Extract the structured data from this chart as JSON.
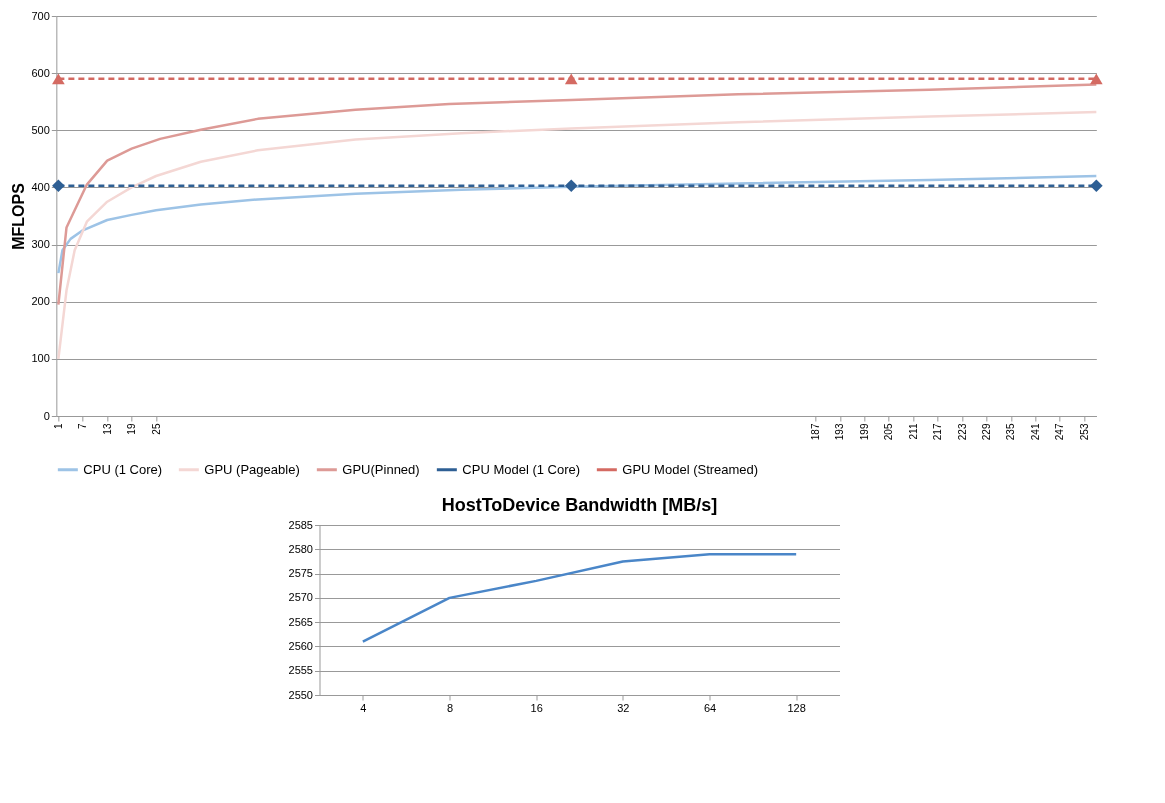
{
  "chart_data": [
    {
      "type": "line",
      "ylabel": "MFLOPS",
      "ylim": [
        0,
        700
      ],
      "yticks": [
        0,
        100,
        200,
        300,
        400,
        500,
        600,
        700
      ],
      "xlim": [
        0.5,
        256
      ],
      "xticks": [
        1,
        7,
        13,
        19,
        25,
        187,
        193,
        199,
        205,
        211,
        217,
        223,
        229,
        235,
        241,
        247,
        253
      ],
      "grid": "y",
      "legend": "bottom",
      "series": [
        {
          "name": "CPU (1 Core)",
          "color": "#9dc3e6",
          "x": [
            1,
            2,
            4,
            7,
            13,
            19,
            25,
            36,
            50,
            74,
            100,
            127,
            168,
            215,
            256
          ],
          "values": [
            250,
            290,
            310,
            325,
            343,
            352,
            360,
            370,
            379,
            389,
            396,
            401,
            407,
            413,
            420
          ]
        },
        {
          "name": "GPU (Pageable)",
          "color": "#f4d7d4",
          "x": [
            1,
            3,
            5,
            8,
            13,
            19,
            25,
            36,
            50,
            74,
            100,
            127,
            168,
            215,
            256
          ],
          "values": [
            100,
            220,
            290,
            340,
            375,
            400,
            420,
            445,
            465,
            484,
            495,
            503,
            514,
            524,
            532
          ]
        },
        {
          "name": "GPU(Pinned)",
          "color": "#dd9a96",
          "x": [
            1,
            3,
            5,
            8,
            13,
            19,
            26,
            36,
            50,
            74,
            97,
            127,
            168,
            215,
            256
          ],
          "values": [
            195,
            330,
            360,
            405,
            447,
            468,
            485,
            501,
            520,
            536,
            546,
            553,
            563,
            571,
            580
          ]
        },
        {
          "name": "CPU Model (1 Core)",
          "color": "#2e5f94",
          "type": "line",
          "line_style": "dashed",
          "marker": "diamond",
          "x": [
            1,
            127,
            256
          ],
          "values": [
            403,
            403,
            403
          ]
        },
        {
          "name": "GPU Model (Streamed)",
          "color": "#d46a62",
          "type": "line",
          "line_style": "dashed",
          "marker": "triangle",
          "x": [
            1,
            127,
            256
          ],
          "values": [
            590,
            590,
            590
          ]
        }
      ]
    },
    {
      "type": "line",
      "title": "HostToDevice Bandwidth [MB/s]",
      "categories": [
        "4",
        "8",
        "16",
        "32",
        "64",
        "128"
      ],
      "ylim": [
        2550,
        2585
      ],
      "yticks": [
        2550,
        2555,
        2560,
        2565,
        2570,
        2575,
        2580,
        2585
      ],
      "grid": "y",
      "series": [
        {
          "color": "#4a86c8",
          "values": [
            2561,
            2570,
            2573.5,
            2577.5,
            2579,
            2579
          ]
        }
      ]
    }
  ]
}
